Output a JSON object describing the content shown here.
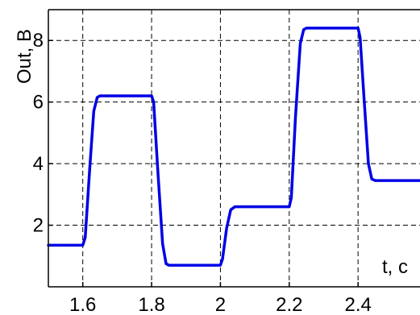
{
  "chart_data": {
    "type": "line",
    "xlabel": "t, c",
    "ylabel": "Out, B",
    "xlim": [
      1.5,
      2.58
    ],
    "ylim": [
      0,
      9.0
    ],
    "grid": true,
    "xticks": [
      1.6,
      1.8,
      2,
      2.2,
      2.4
    ],
    "xtick_labels": [
      "1.6",
      "1.8",
      "2",
      "2.2",
      "2.4"
    ],
    "yticks": [
      2,
      4,
      6,
      8
    ],
    "ytick_labels": [
      "2",
      "4",
      "6",
      "8"
    ],
    "series": [
      {
        "color": "#0000e6",
        "x": [
          1.5,
          1.6,
          1.607,
          1.62,
          1.632,
          1.642,
          1.65,
          1.66,
          1.68,
          1.8,
          1.806,
          1.818,
          1.832,
          1.842,
          1.85,
          1.86,
          1.88,
          2.0,
          2.006,
          2.018,
          2.03,
          2.042,
          2.05,
          2.07,
          2.2,
          2.206,
          2.218,
          2.232,
          2.242,
          2.25,
          2.26,
          2.28,
          2.4,
          2.406,
          2.418,
          2.43,
          2.44,
          2.45,
          2.47,
          2.58
        ],
        "y": [
          1.35,
          1.35,
          1.6,
          3.8,
          5.7,
          6.15,
          6.2,
          6.2,
          6.2,
          6.2,
          6.0,
          3.8,
          1.4,
          0.75,
          0.7,
          0.7,
          0.7,
          0.7,
          0.9,
          1.9,
          2.5,
          2.6,
          2.6,
          2.6,
          2.6,
          2.9,
          5.5,
          7.9,
          8.35,
          8.4,
          8.4,
          8.4,
          8.4,
          8.1,
          6.0,
          4.0,
          3.5,
          3.45,
          3.45,
          3.45
        ]
      }
    ]
  }
}
